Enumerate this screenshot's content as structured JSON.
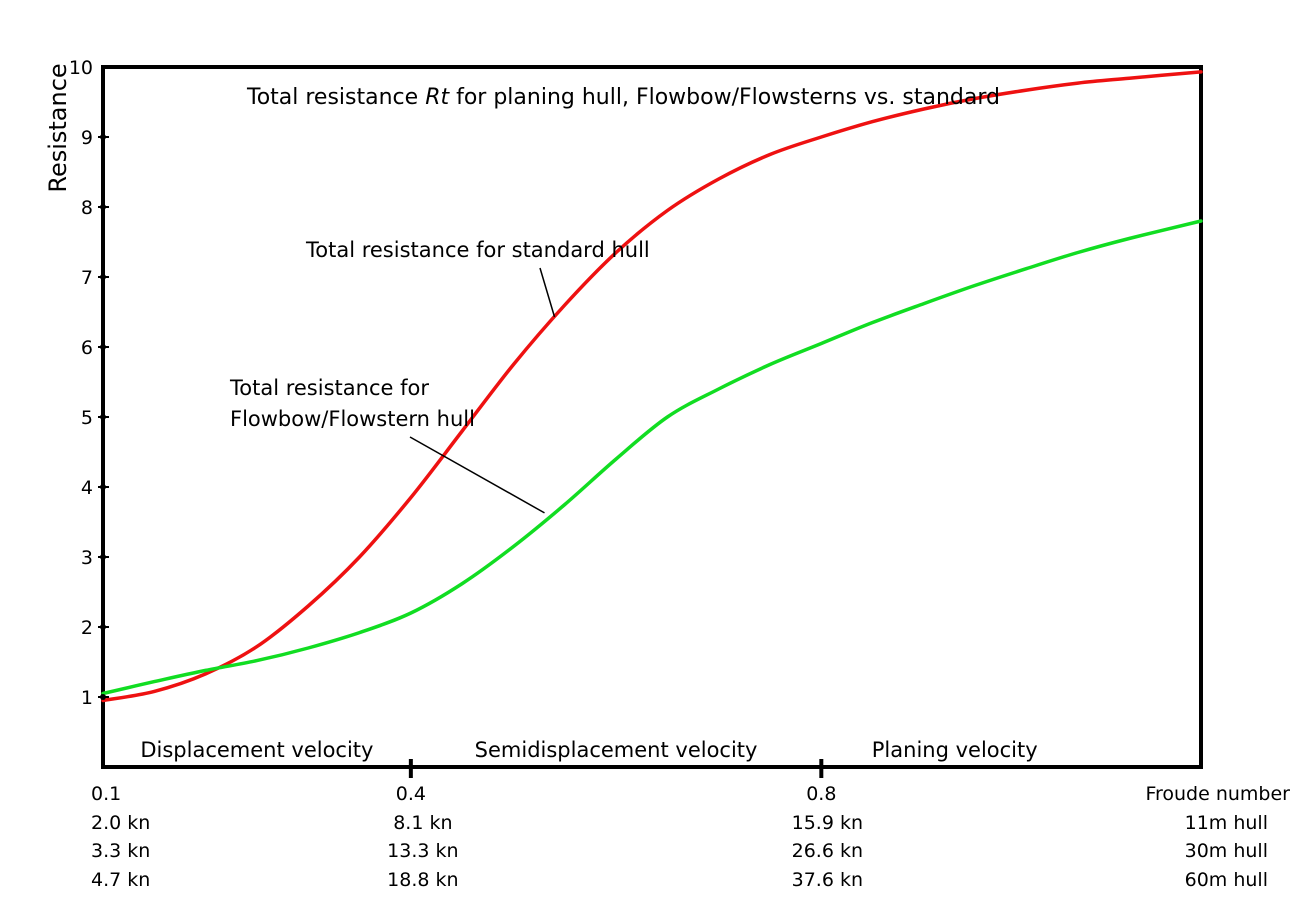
{
  "chart_data": {
    "type": "line",
    "title_prefix": "Total resistance ",
    "title_italic": "Rt",
    "title_suffix": " for planing hull, Flowbow/Flowsterns vs. standard",
    "ylabel": "Resistance",
    "ylim": [
      0,
      10
    ],
    "yticks": [
      "1",
      "2",
      "3",
      "4",
      "5",
      "6",
      "7",
      "8",
      "9",
      "10"
    ],
    "xlim": [
      0.1,
      1.17
    ],
    "grid": false,
    "regions": [
      {
        "label": "Displacement velocity",
        "x": 0.25
      },
      {
        "label": "Semidisplacement velocity",
        "x": 0.6
      },
      {
        "label": "Planing velocity",
        "x": 0.93
      }
    ],
    "xtick_table": {
      "columns": [
        {
          "x": 0.1,
          "align": "start",
          "labels": [
            "0.1",
            "2.0 kn",
            "3.3 kn",
            "4.7 kn"
          ]
        },
        {
          "x": 0.4,
          "align": "middle",
          "labels": [
            "0.4",
            "8.1 kn",
            "13.3 kn",
            "18.8 kn"
          ]
        },
        {
          "x": 0.8,
          "align": "middle",
          "labels": [
            "0.8",
            "15.9 kn",
            "26.6 kn",
            "37.6 kn"
          ]
        },
        {
          "x": 1.17,
          "align": "end",
          "labels": [
            "Froude number",
            "11m hull",
            "30m  hull",
            "60m  hull"
          ]
        }
      ],
      "major_ticks": [
        0.4,
        0.8
      ]
    },
    "series": [
      {
        "name": "Total resistance for standard hull",
        "color": "#ee1111",
        "x": [
          0.1,
          0.15,
          0.2,
          0.25,
          0.3,
          0.35,
          0.4,
          0.45,
          0.5,
          0.55,
          0.6,
          0.65,
          0.7,
          0.75,
          0.8,
          0.85,
          0.9,
          0.95,
          1.0,
          1.05,
          1.1,
          1.17
        ],
        "y": [
          0.95,
          1.08,
          1.33,
          1.72,
          2.3,
          3.0,
          3.85,
          4.8,
          5.75,
          6.6,
          7.35,
          7.95,
          8.4,
          8.75,
          9.0,
          9.22,
          9.4,
          9.55,
          9.67,
          9.77,
          9.84,
          9.93
        ]
      },
      {
        "name": "Total resistance for Flowbow/Flowstern hull",
        "color": "#11dd22",
        "x": [
          0.1,
          0.15,
          0.2,
          0.25,
          0.3,
          0.35,
          0.4,
          0.45,
          0.5,
          0.55,
          0.6,
          0.65,
          0.7,
          0.75,
          0.8,
          0.85,
          0.9,
          0.95,
          1.0,
          1.05,
          1.1,
          1.17
        ],
        "y": [
          1.05,
          1.22,
          1.38,
          1.52,
          1.7,
          1.92,
          2.2,
          2.62,
          3.15,
          3.75,
          4.4,
          5.0,
          5.4,
          5.75,
          6.05,
          6.35,
          6.62,
          6.88,
          7.12,
          7.35,
          7.55,
          7.8
        ]
      }
    ],
    "annotations": [
      {
        "lines": [
          "Total resistance for standard hull"
        ],
        "series": 0,
        "point_x": 0.54
      },
      {
        "lines": [
          "Total resistance for",
          "Flowbow/Flowstern hull"
        ],
        "series": 1,
        "point_x": 0.54
      }
    ]
  }
}
